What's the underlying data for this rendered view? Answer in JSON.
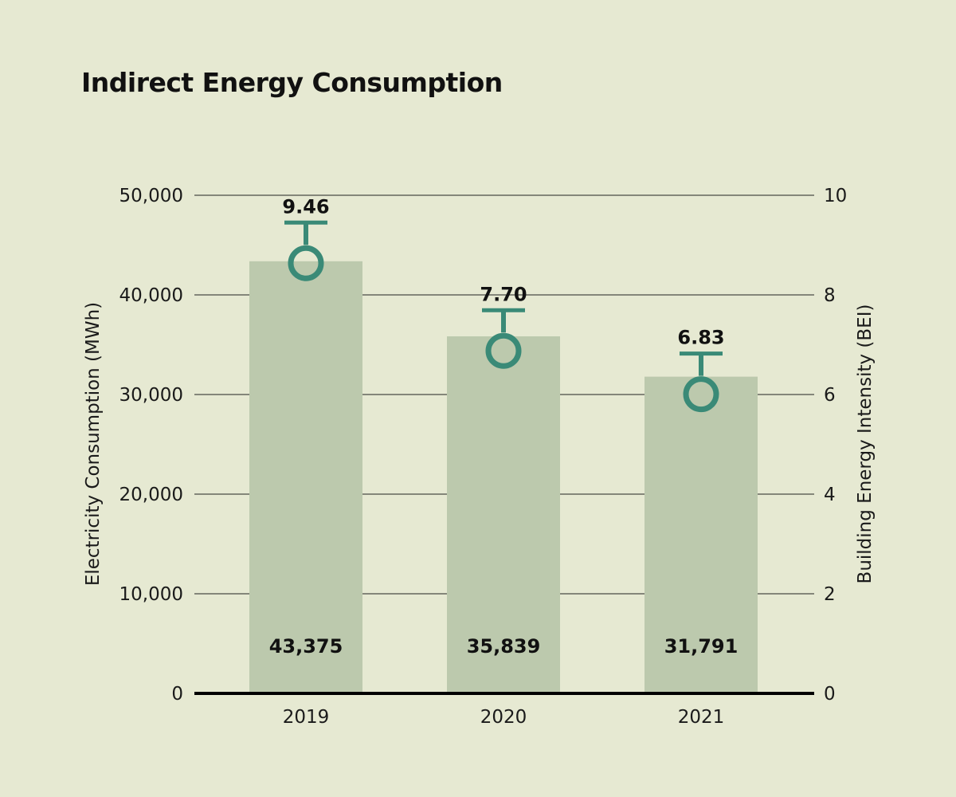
{
  "chart_data": {
    "type": "bar",
    "title": "Indirect Energy Consumption",
    "categories": [
      "2019",
      "2020",
      "2021"
    ],
    "series": [
      {
        "type": "bar",
        "axis": "left",
        "values": [
          43375,
          35839,
          31791
        ],
        "value_labels": [
          "43,375",
          "35,839",
          "31,791"
        ],
        "color": "#bcc9ad"
      },
      {
        "type": "marker",
        "axis": "right",
        "values": [
          9.46,
          7.7,
          6.83
        ],
        "value_labels": [
          "9.46",
          "7.70",
          "6.83"
        ],
        "color": "#3a8a77"
      }
    ],
    "ylabel": "Electricity Consumption (MWh)",
    "ylim": [
      0,
      50000
    ],
    "yticks": [
      "0",
      "10,000",
      "20,000",
      "30,000",
      "40,000",
      "50,000"
    ],
    "ytick_values": [
      0,
      10000,
      20000,
      30000,
      40000,
      50000
    ],
    "y2label": "Building Energy Intensity (BEI)",
    "y2lim": [
      0,
      10
    ],
    "y2ticks": [
      "0",
      "2",
      "4",
      "6",
      "8",
      "10"
    ],
    "y2tick_values": [
      0,
      2,
      4,
      6,
      8,
      10
    ],
    "grid": true,
    "legend": "none",
    "colors": {
      "background": "#e6e9d2",
      "bar": "#bcc9ad",
      "marker": "#3a8a77",
      "gridline": "#222222",
      "baseline": "#000000"
    }
  }
}
